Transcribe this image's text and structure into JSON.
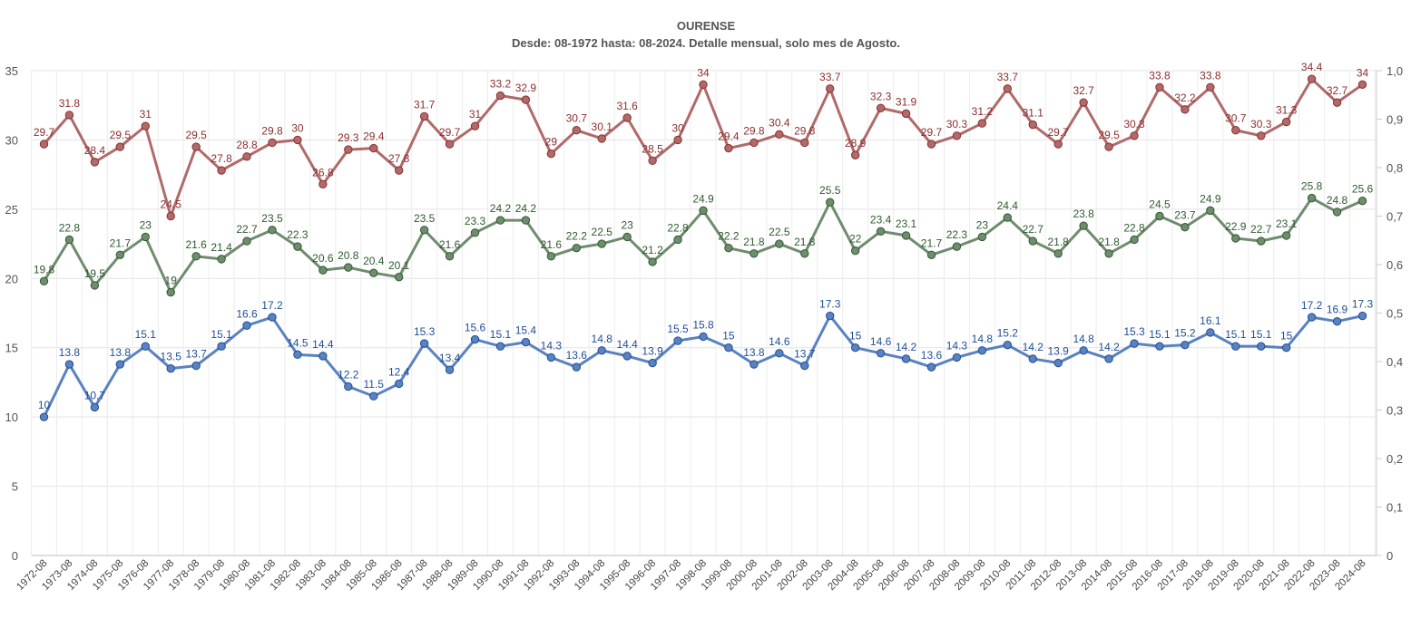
{
  "chart_data": {
    "type": "line",
    "title": "OURENSE",
    "subtitle": "Desde: 08-1972 hasta: 08-2024. Detalle mensual, solo mes de Agosto.",
    "xlabel": "",
    "ylabel": "",
    "ylim": [
      0,
      35
    ],
    "yticks": [
      "0",
      "5",
      "10",
      "15",
      "20",
      "25",
      "30",
      "35"
    ],
    "y2lim": [
      0,
      1.0
    ],
    "y2ticks": [
      "0",
      "0,1",
      "0,2",
      "0,3",
      "0,4",
      "0,5",
      "0,6",
      "0,7",
      "0,8",
      "0,9",
      "1,0"
    ],
    "grid": true,
    "categories": [
      "1972-08",
      "1973-08",
      "1974-08",
      "1975-08",
      "1976-08",
      "1977-08",
      "1978-08",
      "1979-08",
      "1980-08",
      "1981-08",
      "1982-08",
      "1983-08",
      "1984-08",
      "1985-08",
      "1986-08",
      "1987-08",
      "1988-08",
      "1989-08",
      "1990-08",
      "1991-08",
      "1992-08",
      "1993-08",
      "1994-08",
      "1995-08",
      "1996-08",
      "1997-08",
      "1998-08",
      "1999-08",
      "2000-08",
      "2001-08",
      "2002-08",
      "2003-08",
      "2004-08",
      "2005-08",
      "2006-08",
      "2007-08",
      "2008-08",
      "2009-08",
      "2010-08",
      "2011-08",
      "2012-08",
      "2013-08",
      "2014-08",
      "2015-08",
      "2016-08",
      "2017-08",
      "2018-08",
      "2019-08",
      "2020-08",
      "2021-08",
      "2022-08",
      "2023-08",
      "2024-08"
    ],
    "series": [
      {
        "color": "#b06a6a",
        "label_color": "#8a2f2f",
        "values": [
          29.7,
          31.8,
          28.4,
          29.5,
          31,
          24.5,
          29.5,
          27.8,
          28.8,
          29.8,
          30,
          26.8,
          29.3,
          29.4,
          27.8,
          31.7,
          29.7,
          31,
          33.2,
          32.9,
          29,
          30.7,
          30.1,
          31.6,
          28.5,
          30,
          34,
          29.4,
          29.8,
          30.4,
          29.8,
          33.7,
          28.9,
          32.3,
          31.9,
          29.7,
          30.3,
          31.2,
          33.7,
          31.1,
          29.7,
          32.7,
          29.5,
          30.3,
          33.8,
          32.2,
          33.8,
          30.7,
          30.3,
          31.3,
          34.4,
          32.7,
          34
        ]
      },
      {
        "color": "#6f8c6f",
        "label_color": "#2f5a2f",
        "values": [
          19.8,
          22.8,
          19.5,
          21.7,
          23,
          19,
          21.6,
          21.4,
          22.7,
          23.5,
          22.3,
          20.6,
          20.8,
          20.4,
          20.1,
          23.5,
          21.6,
          23.3,
          24.2,
          24.2,
          21.6,
          22.2,
          22.5,
          23,
          21.2,
          22.8,
          24.9,
          22.2,
          21.8,
          22.5,
          21.8,
          25.5,
          22,
          23.4,
          23.1,
          21.7,
          22.3,
          23,
          24.4,
          22.7,
          21.8,
          23.8,
          21.8,
          22.8,
          24.5,
          23.7,
          24.9,
          22.9,
          22.7,
          23.1,
          25.8,
          24.8,
          25.6
        ]
      },
      {
        "color": "#5a82c0",
        "label_color": "#1f4f96",
        "values": [
          10,
          13.8,
          10.7,
          13.8,
          15.1,
          13.5,
          13.7,
          15.1,
          16.6,
          17.2,
          14.5,
          14.4,
          12.2,
          11.5,
          12.4,
          15.3,
          13.4,
          15.6,
          15.1,
          15.4,
          14.3,
          13.6,
          14.8,
          14.4,
          13.9,
          15.5,
          15.8,
          15,
          13.8,
          14.6,
          13.7,
          17.3,
          15,
          14.6,
          14.2,
          13.6,
          14.3,
          14.8,
          15.2,
          14.2,
          13.9,
          14.8,
          14.2,
          15.3,
          15.1,
          15.2,
          16.1,
          15.1,
          15.1,
          15,
          17.2,
          16.9,
          17.3
        ]
      }
    ]
  }
}
